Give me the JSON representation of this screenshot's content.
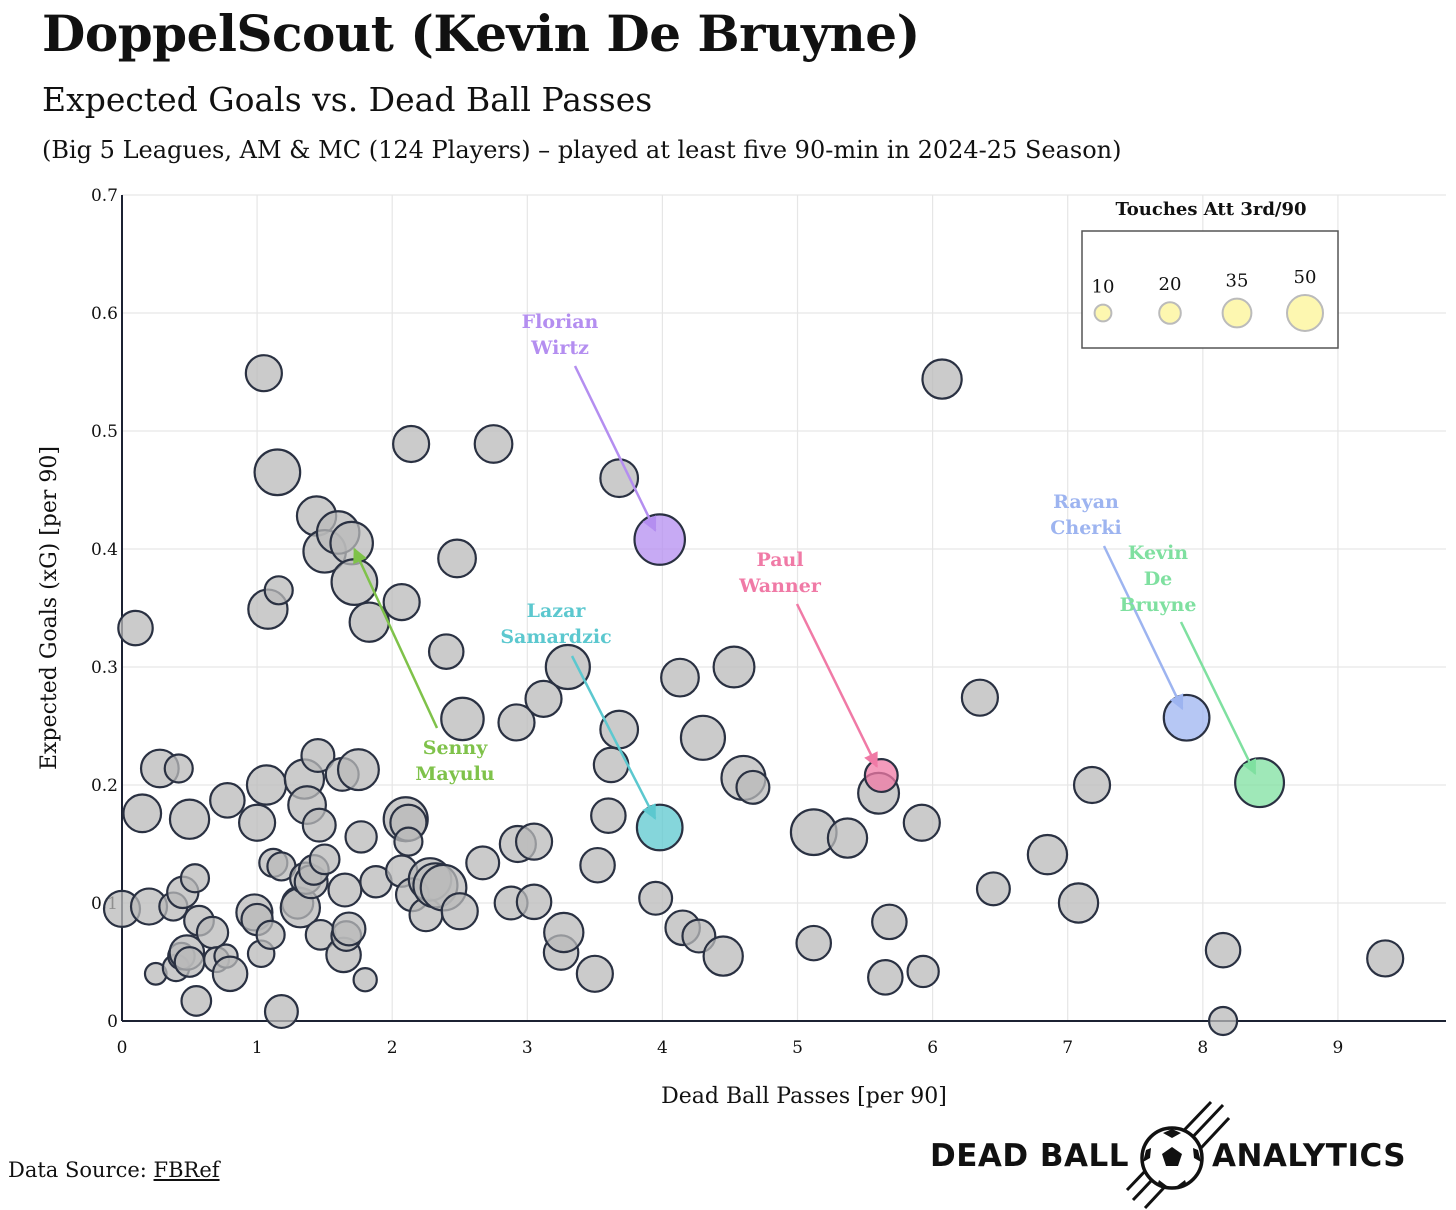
{
  "title": "DoppelScout (Kevin De Bruyne)",
  "subtitle": "Expected Goals vs. Dead Ball Passes",
  "subtitle2": "(Big 5 Leagues, AM & MC (124 Players) – played at least five 90-min in 2024-25 Season)",
  "source": {
    "prefix": "Data Source: ",
    "link": "FBRef"
  },
  "brand": {
    "left": "DEAD BALL",
    "right": "ANALYTICS"
  },
  "colors": {
    "grey": "#b9b9b9",
    "purple": "#b48ef0",
    "green_lime": "#7fc24a",
    "teal": "#5cc8cf",
    "pink": "#f07aa6",
    "blue": "#9db4f0",
    "green": "#7fe0a0",
    "legend_fill": "#fdf7b0"
  },
  "chart_data": {
    "type": "scatter",
    "xlabel": "Dead Ball Passes [per 90]",
    "ylabel": "Expected Goals (xG) [per 90]",
    "xlim": [
      0,
      9.8
    ],
    "ylim": [
      0,
      0.7
    ],
    "xticks": [
      "0",
      "1",
      "2",
      "3",
      "4",
      "5",
      "6",
      "7",
      "8",
      "9"
    ],
    "yticks": [
      "0",
      "0.1",
      "0.2",
      "0.3",
      "0.4",
      "0.5",
      "0.6",
      "0.7"
    ],
    "grid": true,
    "legend": {
      "title": "Touches Att 3rd/90",
      "placement": "top-right",
      "sizes": [
        10,
        20,
        35,
        50
      ],
      "labels": [
        "10",
        "20",
        "35",
        "50"
      ]
    },
    "points": [
      {
        "x": 0.0,
        "y": 0.095,
        "s": 30
      },
      {
        "x": 0.1,
        "y": 0.333,
        "s": 28
      },
      {
        "x": 0.15,
        "y": 0.176,
        "s": 32
      },
      {
        "x": 0.2,
        "y": 0.097,
        "s": 30
      },
      {
        "x": 0.25,
        "y": 0.04,
        "s": 12
      },
      {
        "x": 0.28,
        "y": 0.214,
        "s": 32
      },
      {
        "x": 0.38,
        "y": 0.097,
        "s": 20
      },
      {
        "x": 0.4,
        "y": 0.045,
        "s": 18
      },
      {
        "x": 0.42,
        "y": 0.214,
        "s": 20
      },
      {
        "x": 0.44,
        "y": 0.055,
        "s": 18
      },
      {
        "x": 0.45,
        "y": 0.109,
        "s": 24
      },
      {
        "x": 0.48,
        "y": 0.058,
        "s": 28
      },
      {
        "x": 0.5,
        "y": 0.05,
        "s": 22
      },
      {
        "x": 0.5,
        "y": 0.171,
        "s": 34
      },
      {
        "x": 0.54,
        "y": 0.121,
        "s": 20
      },
      {
        "x": 0.55,
        "y": 0.017,
        "s": 22
      },
      {
        "x": 0.57,
        "y": 0.085,
        "s": 22
      },
      {
        "x": 0.67,
        "y": 0.075,
        "s": 24
      },
      {
        "x": 0.7,
        "y": 0.052,
        "s": 16
      },
      {
        "x": 0.77,
        "y": 0.055,
        "s": 14
      },
      {
        "x": 0.78,
        "y": 0.187,
        "s": 28
      },
      {
        "x": 0.8,
        "y": 0.04,
        "s": 28
      },
      {
        "x": 0.98,
        "y": 0.092,
        "s": 30
      },
      {
        "x": 1.0,
        "y": 0.168,
        "s": 30
      },
      {
        "x": 1.0,
        "y": 0.086,
        "s": 24
      },
      {
        "x": 1.03,
        "y": 0.057,
        "s": 18
      },
      {
        "x": 1.05,
        "y": 0.549,
        "s": 30
      },
      {
        "x": 1.07,
        "y": 0.2,
        "s": 34
      },
      {
        "x": 1.08,
        "y": 0.349,
        "s": 34
      },
      {
        "x": 1.1,
        "y": 0.073,
        "s": 20
      },
      {
        "x": 1.12,
        "y": 0.134,
        "s": 20
      },
      {
        "x": 1.15,
        "y": 0.465,
        "s": 42
      },
      {
        "x": 1.16,
        "y": 0.365,
        "s": 20
      },
      {
        "x": 1.18,
        "y": 0.131,
        "s": 20
      },
      {
        "x": 1.18,
        "y": 0.008,
        "s": 26
      },
      {
        "x": 1.3,
        "y": 0.1,
        "s": 24
      },
      {
        "x": 1.32,
        "y": 0.096,
        "s": 34
      },
      {
        "x": 1.35,
        "y": 0.205,
        "s": 34
      },
      {
        "x": 1.36,
        "y": 0.121,
        "s": 24
      },
      {
        "x": 1.37,
        "y": 0.183,
        "s": 32
      },
      {
        "x": 1.4,
        "y": 0.118,
        "s": 26
      },
      {
        "x": 1.42,
        "y": 0.128,
        "s": 22
      },
      {
        "x": 1.44,
        "y": 0.428,
        "s": 34
      },
      {
        "x": 1.45,
        "y": 0.225,
        "s": 26
      },
      {
        "x": 1.46,
        "y": 0.166,
        "s": 26
      },
      {
        "x": 1.47,
        "y": 0.073,
        "s": 22
      },
      {
        "x": 1.5,
        "y": 0.137,
        "s": 22
      },
      {
        "x": 1.5,
        "y": 0.398,
        "s": 38
      },
      {
        "x": 1.6,
        "y": 0.414,
        "s": 38
      },
      {
        "x": 1.63,
        "y": 0.209,
        "s": 26
      },
      {
        "x": 1.64,
        "y": 0.056,
        "s": 28
      },
      {
        "x": 1.65,
        "y": 0.111,
        "s": 26
      },
      {
        "x": 1.66,
        "y": 0.072,
        "s": 22
      },
      {
        "x": 1.68,
        "y": 0.078,
        "s": 26
      },
      {
        "x": 1.7,
        "y": 0.405,
        "s": 38
      },
      {
        "x": 1.72,
        "y": 0.372,
        "s": 42
      },
      {
        "x": 1.75,
        "y": 0.213,
        "s": 36
      },
      {
        "x": 1.77,
        "y": 0.156,
        "s": 24
      },
      {
        "x": 1.8,
        "y": 0.035,
        "s": 14
      },
      {
        "x": 1.83,
        "y": 0.338,
        "s": 34
      },
      {
        "x": 1.88,
        "y": 0.118,
        "s": 24
      },
      {
        "x": 2.07,
        "y": 0.355,
        "s": 30
      },
      {
        "x": 2.07,
        "y": 0.127,
        "s": 24
      },
      {
        "x": 2.1,
        "y": 0.171,
        "s": 40
      },
      {
        "x": 2.12,
        "y": 0.168,
        "s": 30
      },
      {
        "x": 2.12,
        "y": 0.152,
        "s": 20
      },
      {
        "x": 2.14,
        "y": 0.489,
        "s": 30
      },
      {
        "x": 2.15,
        "y": 0.107,
        "s": 26
      },
      {
        "x": 2.25,
        "y": 0.09,
        "s": 26
      },
      {
        "x": 2.28,
        "y": 0.12,
        "s": 38
      },
      {
        "x": 2.32,
        "y": 0.115,
        "s": 40
      },
      {
        "x": 2.38,
        "y": 0.113,
        "s": 42
      },
      {
        "x": 2.4,
        "y": 0.313,
        "s": 28
      },
      {
        "x": 2.48,
        "y": 0.392,
        "s": 32
      },
      {
        "x": 2.5,
        "y": 0.093,
        "s": 30
      },
      {
        "x": 2.52,
        "y": 0.256,
        "s": 38
      },
      {
        "x": 2.67,
        "y": 0.134,
        "s": 26
      },
      {
        "x": 2.75,
        "y": 0.489,
        "s": 32
      },
      {
        "x": 2.88,
        "y": 0.1,
        "s": 26
      },
      {
        "x": 2.92,
        "y": 0.253,
        "s": 30
      },
      {
        "x": 2.93,
        "y": 0.15,
        "s": 30
      },
      {
        "x": 3.05,
        "y": 0.101,
        "s": 28
      },
      {
        "x": 3.05,
        "y": 0.152,
        "s": 30
      },
      {
        "x": 3.12,
        "y": 0.273,
        "s": 30
      },
      {
        "x": 3.25,
        "y": 0.058,
        "s": 28
      },
      {
        "x": 3.27,
        "y": 0.075,
        "s": 34
      },
      {
        "x": 3.3,
        "y": 0.3,
        "s": 40
      },
      {
        "x": 3.5,
        "y": 0.04,
        "s": 30
      },
      {
        "x": 3.52,
        "y": 0.132,
        "s": 28
      },
      {
        "x": 3.6,
        "y": 0.174,
        "s": 28
      },
      {
        "x": 3.62,
        "y": 0.217,
        "s": 28
      },
      {
        "x": 3.68,
        "y": 0.247,
        "s": 32
      },
      {
        "x": 3.68,
        "y": 0.46,
        "s": 32
      },
      {
        "x": 3.95,
        "y": 0.104,
        "s": 26
      },
      {
        "x": 3.98,
        "y": 0.408,
        "s": 48,
        "highlight": "purple"
      },
      {
        "x": 3.98,
        "y": 0.164,
        "s": 42,
        "highlight": "teal"
      },
      {
        "x": 4.13,
        "y": 0.291,
        "s": 32
      },
      {
        "x": 4.15,
        "y": 0.079,
        "s": 28
      },
      {
        "x": 4.27,
        "y": 0.072,
        "s": 26
      },
      {
        "x": 4.3,
        "y": 0.24,
        "s": 40
      },
      {
        "x": 4.45,
        "y": 0.055,
        "s": 34
      },
      {
        "x": 4.53,
        "y": 0.3,
        "s": 36
      },
      {
        "x": 4.6,
        "y": 0.206,
        "s": 40
      },
      {
        "x": 4.67,
        "y": 0.198,
        "s": 26
      },
      {
        "x": 5.12,
        "y": 0.066,
        "s": 28
      },
      {
        "x": 5.12,
        "y": 0.16,
        "s": 42
      },
      {
        "x": 5.37,
        "y": 0.155,
        "s": 34
      },
      {
        "x": 5.6,
        "y": 0.193,
        "s": 36
      },
      {
        "x": 5.62,
        "y": 0.208,
        "s": 26,
        "highlight": "pink"
      },
      {
        "x": 5.65,
        "y": 0.037,
        "s": 28
      },
      {
        "x": 5.68,
        "y": 0.084,
        "s": 28
      },
      {
        "x": 5.92,
        "y": 0.168,
        "s": 30
      },
      {
        "x": 5.93,
        "y": 0.042,
        "s": 24
      },
      {
        "x": 6.07,
        "y": 0.544,
        "s": 34
      },
      {
        "x": 6.35,
        "y": 0.274,
        "s": 30
      },
      {
        "x": 6.45,
        "y": 0.112,
        "s": 26
      },
      {
        "x": 6.85,
        "y": 0.141,
        "s": 34
      },
      {
        "x": 7.08,
        "y": 0.1,
        "s": 34
      },
      {
        "x": 7.18,
        "y": 0.2,
        "s": 30
      },
      {
        "x": 7.88,
        "y": 0.257,
        "s": 42,
        "highlight": "blue"
      },
      {
        "x": 8.15,
        "y": 0.06,
        "s": 28
      },
      {
        "x": 8.15,
        "y": 0.0,
        "s": 20
      },
      {
        "x": 8.42,
        "y": 0.202,
        "s": 46,
        "highlight": "green"
      },
      {
        "x": 9.35,
        "y": 0.053,
        "s": 30
      }
    ],
    "annotations": [
      {
        "text": [
          "Florian",
          "Wirtz"
        ],
        "color": "purple",
        "x": 3.98,
        "y": 0.408
      },
      {
        "text": [
          "Senny",
          "Mayulu"
        ],
        "color": "green_lime",
        "x": 1.72,
        "y": 0.4
      },
      {
        "text": [
          "Lazar",
          "Samardzic"
        ],
        "color": "teal",
        "x": 3.98,
        "y": 0.164
      },
      {
        "text": [
          "Paul",
          "Wanner"
        ],
        "color": "pink",
        "x": 5.62,
        "y": 0.208
      },
      {
        "text": [
          "Rayan",
          "Cherki"
        ],
        "color": "blue",
        "x": 7.88,
        "y": 0.257
      },
      {
        "text": [
          "Kevin",
          "De",
          "Bruyne"
        ],
        "color": "green",
        "x": 8.42,
        "y": 0.202
      }
    ]
  }
}
